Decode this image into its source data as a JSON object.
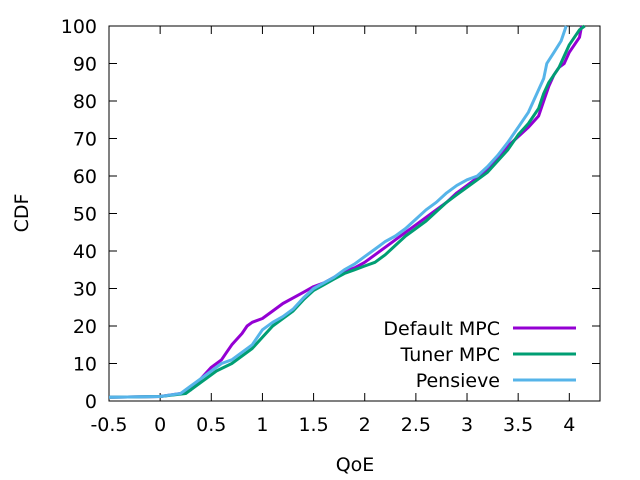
{
  "chart_data": {
    "type": "line",
    "xlabel": "QoE",
    "ylabel": "CDF",
    "xlim": [
      -0.5,
      4.3
    ],
    "ylim": [
      0,
      100
    ],
    "x_ticks": [
      -0.5,
      0,
      0.5,
      1,
      1.5,
      2,
      2.5,
      3,
      3.5,
      4
    ],
    "x_tick_labels": [
      "-0.5",
      "0",
      "0.5",
      "1",
      "1.5",
      "2",
      "2.5",
      "3",
      "3.5",
      "4"
    ],
    "y_ticks": [
      0,
      10,
      20,
      30,
      40,
      50,
      60,
      70,
      80,
      90,
      100
    ],
    "y_tick_labels": [
      "0",
      "10",
      "20",
      "30",
      "40",
      "50",
      "60",
      "70",
      "80",
      "90",
      "100"
    ],
    "grid": false,
    "legend_position": "bottom-right",
    "series": [
      {
        "name": "Default MPC",
        "color": "#9400d3",
        "points": [
          [
            -0.55,
            1
          ],
          [
            0,
            1.2
          ],
          [
            0.2,
            2
          ],
          [
            0.3,
            3
          ],
          [
            0.4,
            6
          ],
          [
            0.5,
            9
          ],
          [
            0.6,
            11
          ],
          [
            0.65,
            13
          ],
          [
            0.7,
            15
          ],
          [
            0.8,
            18
          ],
          [
            0.85,
            20
          ],
          [
            0.9,
            21
          ],
          [
            1.0,
            22
          ],
          [
            1.1,
            24
          ],
          [
            1.2,
            26
          ],
          [
            1.3,
            27.5
          ],
          [
            1.4,
            29
          ],
          [
            1.5,
            30.5
          ],
          [
            1.6,
            31.5
          ],
          [
            1.7,
            33
          ],
          [
            1.8,
            34.5
          ],
          [
            1.9,
            35.5
          ],
          [
            2.0,
            37
          ],
          [
            2.1,
            39
          ],
          [
            2.2,
            41
          ],
          [
            2.3,
            43
          ],
          [
            2.4,
            45
          ],
          [
            2.5,
            47
          ],
          [
            2.6,
            49
          ],
          [
            2.7,
            51
          ],
          [
            2.8,
            53
          ],
          [
            2.9,
            55.5
          ],
          [
            3.0,
            57.5
          ],
          [
            3.1,
            59.5
          ],
          [
            3.2,
            62
          ],
          [
            3.3,
            65
          ],
          [
            3.4,
            68
          ],
          [
            3.5,
            70.5
          ],
          [
            3.6,
            73
          ],
          [
            3.7,
            76
          ],
          [
            3.75,
            80
          ],
          [
            3.8,
            84
          ],
          [
            3.85,
            87
          ],
          [
            3.9,
            89
          ],
          [
            3.95,
            90
          ],
          [
            4.0,
            93
          ],
          [
            4.05,
            95
          ],
          [
            4.1,
            97
          ],
          [
            4.12,
            100
          ]
        ]
      },
      {
        "name": "Tuner MPC",
        "color": "#009e73",
        "points": [
          [
            -0.55,
            1
          ],
          [
            0,
            1.2
          ],
          [
            0.25,
            2
          ],
          [
            0.35,
            4
          ],
          [
            0.45,
            6
          ],
          [
            0.55,
            8
          ],
          [
            0.7,
            10
          ],
          [
            0.8,
            12
          ],
          [
            0.9,
            14
          ],
          [
            1.0,
            17
          ],
          [
            1.1,
            20
          ],
          [
            1.2,
            22
          ],
          [
            1.3,
            24
          ],
          [
            1.4,
            27
          ],
          [
            1.5,
            29.5
          ],
          [
            1.6,
            31
          ],
          [
            1.7,
            32.5
          ],
          [
            1.8,
            34
          ],
          [
            1.9,
            35
          ],
          [
            2.0,
            36
          ],
          [
            2.1,
            37
          ],
          [
            2.2,
            39
          ],
          [
            2.3,
            41.5
          ],
          [
            2.4,
            44
          ],
          [
            2.5,
            46
          ],
          [
            2.6,
            48
          ],
          [
            2.7,
            50.5
          ],
          [
            2.8,
            53
          ],
          [
            2.9,
            55
          ],
          [
            3.0,
            57
          ],
          [
            3.1,
            59
          ],
          [
            3.2,
            61
          ],
          [
            3.3,
            64
          ],
          [
            3.4,
            67
          ],
          [
            3.5,
            71
          ],
          [
            3.6,
            74
          ],
          [
            3.7,
            78
          ],
          [
            3.75,
            82
          ],
          [
            3.8,
            85
          ],
          [
            3.9,
            89
          ],
          [
            3.95,
            92
          ],
          [
            4.0,
            95
          ],
          [
            4.05,
            97
          ],
          [
            4.1,
            99
          ],
          [
            4.15,
            100
          ]
        ]
      },
      {
        "name": "Pensieve",
        "color": "#56b4e9",
        "points": [
          [
            -0.55,
            1
          ],
          [
            0,
            1.2
          ],
          [
            0.2,
            2
          ],
          [
            0.3,
            4
          ],
          [
            0.4,
            6
          ],
          [
            0.5,
            8
          ],
          [
            0.6,
            10
          ],
          [
            0.7,
            11
          ],
          [
            0.8,
            13
          ],
          [
            0.9,
            15
          ],
          [
            1.0,
            19
          ],
          [
            1.1,
            21
          ],
          [
            1.2,
            22.5
          ],
          [
            1.3,
            24.5
          ],
          [
            1.4,
            27.5
          ],
          [
            1.5,
            30
          ],
          [
            1.6,
            31.5
          ],
          [
            1.7,
            33
          ],
          [
            1.8,
            35
          ],
          [
            1.9,
            36.5
          ],
          [
            2.0,
            38.5
          ],
          [
            2.1,
            40.5
          ],
          [
            2.2,
            42.5
          ],
          [
            2.3,
            44
          ],
          [
            2.4,
            46
          ],
          [
            2.5,
            48.5
          ],
          [
            2.6,
            51
          ],
          [
            2.7,
            53
          ],
          [
            2.8,
            55.5
          ],
          [
            2.9,
            57.5
          ],
          [
            3.0,
            59
          ],
          [
            3.1,
            60
          ],
          [
            3.2,
            62.5
          ],
          [
            3.3,
            65.5
          ],
          [
            3.4,
            69
          ],
          [
            3.5,
            73
          ],
          [
            3.6,
            77
          ],
          [
            3.65,
            80
          ],
          [
            3.7,
            83
          ],
          [
            3.75,
            86
          ],
          [
            3.78,
            90
          ],
          [
            3.85,
            93
          ],
          [
            3.92,
            96
          ],
          [
            3.97,
            100
          ]
        ]
      }
    ]
  }
}
